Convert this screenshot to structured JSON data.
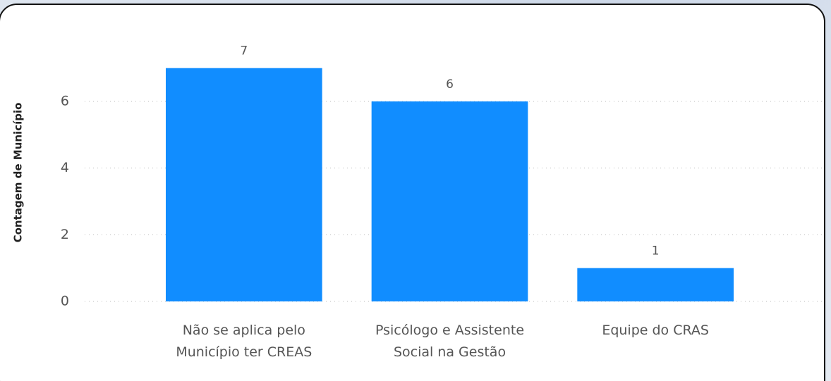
{
  "chart_data": {
    "type": "bar",
    "y_label": "Contagem de Município",
    "categories": [
      "Não se aplica pelo Município ter CREAS",
      "Psicólogo e Assistente Social na Gestão",
      "Equipe do CRAS"
    ],
    "values": [
      7,
      6,
      1
    ],
    "color": "#118dff",
    "ylim": [
      0,
      7
    ],
    "yticks": [
      0,
      2,
      4,
      6
    ],
    "grid": true
  }
}
